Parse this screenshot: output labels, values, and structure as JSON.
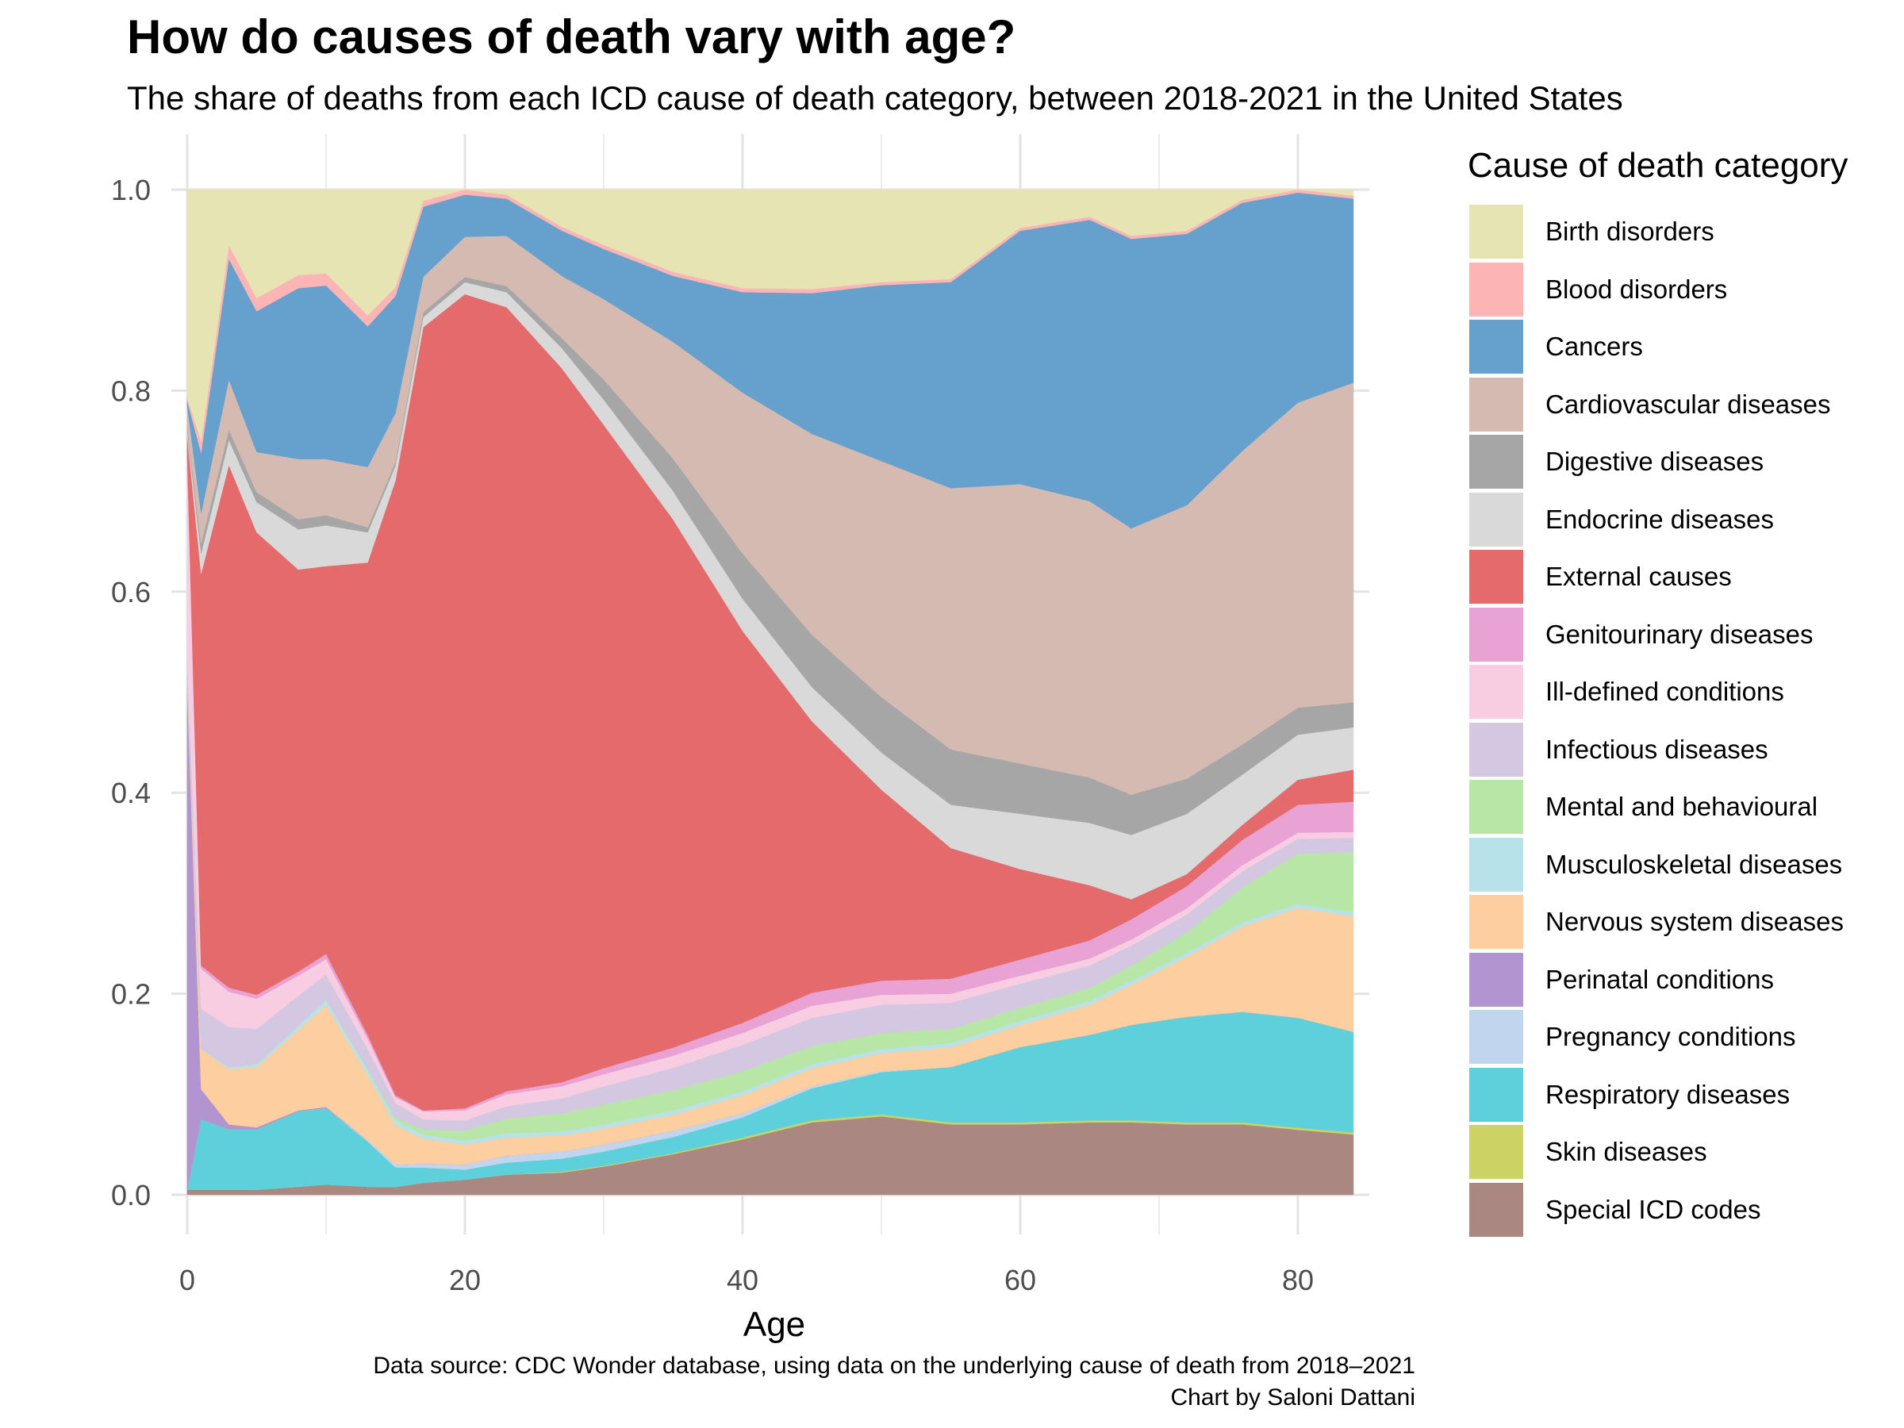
{
  "chart_data": {
    "type": "area",
    "stacked": "normalized",
    "title": "How do causes of death vary with age?",
    "subtitle": "The share of deaths from each ICD cause of death category, between 2018-2021 in the United States",
    "xlabel": "Age",
    "ylabel": "",
    "xlim": [
      0,
      84
    ],
    "ylim": [
      0,
      1
    ],
    "x_ticks": [
      0,
      20,
      40,
      60,
      80
    ],
    "y_ticks": [
      0.0,
      0.2,
      0.4,
      0.6,
      0.8,
      1.0
    ],
    "y_tick_labels": [
      "0.0",
      "0.2",
      "0.4",
      "0.6",
      "0.8",
      "1.0"
    ],
    "grid": true,
    "legend": {
      "title": "Cause of death category",
      "position": "right"
    },
    "x": [
      0,
      1,
      3,
      5,
      8,
      10,
      13,
      15,
      17,
      20,
      23,
      27,
      30,
      35,
      40,
      45,
      50,
      55,
      60,
      65,
      68,
      72,
      76,
      80,
      84
    ],
    "series": [
      {
        "name": "Special ICD codes",
        "color": "#ab8781",
        "values": [
          0.005,
          0.005,
          0.005,
          0.005,
          0.008,
          0.01,
          0.008,
          0.008,
          0.012,
          0.015,
          0.02,
          0.022,
          0.028,
          0.04,
          0.055,
          0.072,
          0.078,
          0.07,
          0.07,
          0.072,
          0.072,
          0.07,
          0.07,
          0.065,
          0.06
        ]
      },
      {
        "name": "Skin diseases",
        "color": "#cdd264",
        "values": [
          0,
          0,
          0,
          0,
          0,
          0,
          0,
          0,
          0,
          0,
          0,
          0.001,
          0.001,
          0.001,
          0.002,
          0.002,
          0.002,
          0.002,
          0.002,
          0.002,
          0.002,
          0.002,
          0.002,
          0.002,
          0.002
        ]
      },
      {
        "name": "Respiratory diseases",
        "color": "#5ed0db",
        "values": [
          0,
          0.07,
          0.06,
          0.06,
          0.075,
          0.075,
          0.045,
          0.02,
          0.015,
          0.01,
          0.012,
          0.013,
          0.014,
          0.016,
          0.02,
          0.032,
          0.042,
          0.055,
          0.075,
          0.085,
          0.095,
          0.105,
          0.11,
          0.11,
          0.1
        ]
      },
      {
        "name": "Pregnancy conditions",
        "color": "#c2d5ef",
        "values": [
          0,
          0,
          0,
          0,
          0,
          0,
          0.001,
          0.003,
          0.004,
          0.005,
          0.007,
          0.007,
          0.007,
          0.006,
          0.004,
          0.002,
          0.001,
          0,
          0,
          0,
          0,
          0,
          0,
          0,
          0
        ]
      },
      {
        "name": "Perinatal conditions",
        "color": "#b194d0",
        "values": [
          0.5,
          0.03,
          0.005,
          0.002,
          0.001,
          0.001,
          0,
          0,
          0,
          0,
          0,
          0,
          0,
          0,
          0,
          0,
          0,
          0,
          0,
          0,
          0,
          0,
          0,
          0,
          0
        ]
      },
      {
        "name": "Nervous system diseases",
        "color": "#fdcea0",
        "values": [
          0.01,
          0.04,
          0.055,
          0.06,
          0.08,
          0.1,
          0.065,
          0.04,
          0.025,
          0.02,
          0.018,
          0.016,
          0.016,
          0.016,
          0.018,
          0.018,
          0.018,
          0.02,
          0.022,
          0.03,
          0.04,
          0.06,
          0.085,
          0.11,
          0.115
        ]
      },
      {
        "name": "Musculoskeletal diseases",
        "color": "#b7e2e9",
        "values": [
          0,
          0,
          0.002,
          0.003,
          0.004,
          0.005,
          0.005,
          0.005,
          0.004,
          0.004,
          0.004,
          0.004,
          0.004,
          0.004,
          0.004,
          0.004,
          0.004,
          0.004,
          0.004,
          0.004,
          0.004,
          0.004,
          0.004,
          0.004,
          0.004
        ]
      },
      {
        "name": "Mental and behavioural",
        "color": "#b7e6a7",
        "values": [
          0,
          0,
          0,
          0,
          0,
          0,
          0.001,
          0.003,
          0.005,
          0.01,
          0.015,
          0.018,
          0.02,
          0.02,
          0.02,
          0.018,
          0.016,
          0.014,
          0.013,
          0.013,
          0.015,
          0.02,
          0.035,
          0.05,
          0.06
        ]
      },
      {
        "name": "Infectious diseases",
        "color": "#d3c7e1",
        "values": [
          0.02,
          0.04,
          0.04,
          0.035,
          0.03,
          0.025,
          0.02,
          0.015,
          0.01,
          0.01,
          0.012,
          0.015,
          0.018,
          0.022,
          0.026,
          0.028,
          0.028,
          0.026,
          0.024,
          0.022,
          0.02,
          0.018,
          0.016,
          0.015,
          0.014
        ]
      },
      {
        "name": "Ill-defined conditions",
        "color": "#f8cde2",
        "values": [
          0.2,
          0.04,
          0.035,
          0.03,
          0.02,
          0.015,
          0.01,
          0.006,
          0.008,
          0.01,
          0.012,
          0.012,
          0.012,
          0.012,
          0.012,
          0.012,
          0.01,
          0.009,
          0.008,
          0.007,
          0.006,
          0.006,
          0.006,
          0.006,
          0.006
        ]
      },
      {
        "name": "Genitourinary diseases",
        "color": "#e8a2d3",
        "values": [
          0,
          0.003,
          0.004,
          0.004,
          0.004,
          0.005,
          0.004,
          0.002,
          0.001,
          0.002,
          0.003,
          0.004,
          0.006,
          0.008,
          0.01,
          0.013,
          0.014,
          0.015,
          0.016,
          0.018,
          0.02,
          0.022,
          0.025,
          0.028,
          0.03
        ]
      },
      {
        "name": "External causes",
        "color": "#e46a6c",
        "values": [
          0.02,
          0.39,
          0.52,
          0.46,
          0.4,
          0.38,
          0.47,
          0.63,
          0.78,
          0.81,
          0.78,
          0.71,
          0.64,
          0.52,
          0.39,
          0.27,
          0.19,
          0.13,
          0.09,
          0.055,
          0.02,
          0.012,
          0.015,
          0.025,
          0.032
        ]
      },
      {
        "name": "Endocrine diseases",
        "color": "#d9d9d9",
        "values": [
          0.005,
          0.02,
          0.025,
          0.03,
          0.04,
          0.04,
          0.03,
          0.015,
          0.01,
          0.012,
          0.015,
          0.02,
          0.025,
          0.028,
          0.032,
          0.034,
          0.037,
          0.043,
          0.055,
          0.062,
          0.064,
          0.06,
          0.05,
          0.045,
          0.042
        ]
      },
      {
        "name": "Digestive diseases",
        "color": "#a6a6a6",
        "values": [
          0.005,
          0.01,
          0.01,
          0.01,
          0.01,
          0.01,
          0.005,
          0.004,
          0.005,
          0.005,
          0.006,
          0.01,
          0.02,
          0.032,
          0.045,
          0.052,
          0.055,
          0.055,
          0.05,
          0.045,
          0.04,
          0.035,
          0.03,
          0.027,
          0.025
        ]
      },
      {
        "name": "Cardiovascular diseases",
        "color": "#d5bab2",
        "values": [
          0.02,
          0.03,
          0.05,
          0.04,
          0.06,
          0.055,
          0.06,
          0.05,
          0.035,
          0.04,
          0.05,
          0.062,
          0.08,
          0.115,
          0.16,
          0.2,
          0.235,
          0.26,
          0.278,
          0.275,
          0.265,
          0.272,
          0.292,
          0.305,
          0.318
        ]
      },
      {
        "name": "Cancers",
        "color": "#65a1cc",
        "values": [
          0.005,
          0.06,
          0.12,
          0.14,
          0.17,
          0.17,
          0.14,
          0.12,
          0.07,
          0.042,
          0.037,
          0.045,
          0.05,
          0.065,
          0.1,
          0.14,
          0.175,
          0.205,
          0.252,
          0.28,
          0.288,
          0.27,
          0.247,
          0.21,
          0.183
        ]
      },
      {
        "name": "Blood disorders",
        "color": "#fdb4b5",
        "values": [
          0.003,
          0.012,
          0.014,
          0.013,
          0.013,
          0.012,
          0.011,
          0.009,
          0.006,
          0.005,
          0.004,
          0.004,
          0.004,
          0.004,
          0.004,
          0.004,
          0.003,
          0.003,
          0.003,
          0.003,
          0.003,
          0.003,
          0.003,
          0.003,
          0.003
        ]
      },
      {
        "name": "Birth disorders",
        "color": "#e5e4b2",
        "values": [
          0.207,
          0.25,
          0.055,
          0.108,
          0.085,
          0.082,
          0.125,
          0.1,
          0.011,
          0.0,
          0.005,
          0.037,
          0.055,
          0.081,
          0.098,
          0.099,
          0.092,
          0.089,
          0.038,
          0.027,
          0.046,
          0.041,
          0.01,
          0.0,
          0.006
        ]
      }
    ],
    "legend_order": [
      "Birth disorders",
      "Blood disorders",
      "Cancers",
      "Cardiovascular diseases",
      "Digestive diseases",
      "Endocrine diseases",
      "External causes",
      "Genitourinary diseases",
      "Ill-defined conditions",
      "Infectious diseases",
      "Mental and behavioural",
      "Musculoskeletal diseases",
      "Nervous system diseases",
      "Perinatal conditions",
      "Pregnancy conditions",
      "Respiratory diseases",
      "Skin diseases",
      "Special ICD codes"
    ]
  },
  "footer": {
    "source": "Data source: CDC Wonder database, using data on the underlying cause of death from 2018–2021",
    "credit": "Chart by Saloni Dattani"
  }
}
